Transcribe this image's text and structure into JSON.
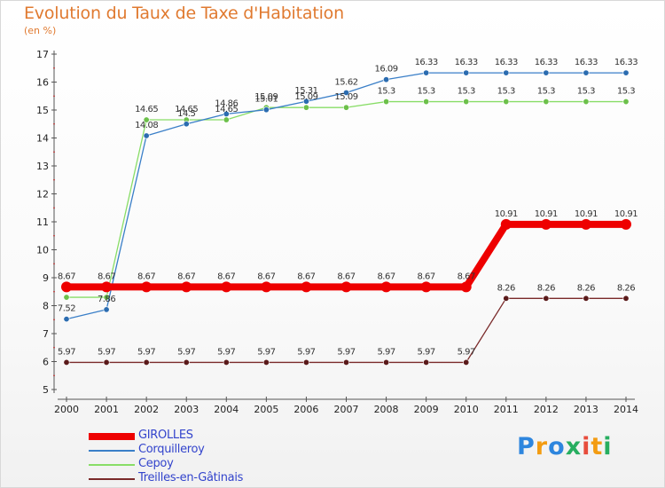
{
  "title": "Evolution du Taux de Taxe d'Habitation",
  "unit": "(en %)",
  "logo": {
    "text": "Proxiti",
    "letter_colors": [
      "#2e86de",
      "#f39c12",
      "#2e86de",
      "#27ae60",
      "#e74c3c",
      "#f39c12",
      "#27ae60"
    ]
  },
  "chart_data": {
    "type": "line",
    "title": "Evolution du Taux de Taxe d'Habitation",
    "ylabel": "(en %)",
    "xlabel": "",
    "x": [
      "2000",
      "2001",
      "2002",
      "2003",
      "2004",
      "2005",
      "2006",
      "2007",
      "2008",
      "2009",
      "2010",
      "2011",
      "2012",
      "2013",
      "2014"
    ],
    "ylim": [
      5,
      17
    ],
    "yticks": [
      5,
      6,
      7,
      8,
      9,
      10,
      11,
      12,
      13,
      14,
      15,
      16,
      17
    ],
    "grid": false,
    "legend": "bottom-left",
    "series": [
      {
        "name": "GIROLLES",
        "color": "#ee0000",
        "thick": true,
        "values": [
          8.67,
          8.67,
          8.67,
          8.67,
          8.67,
          8.67,
          8.67,
          8.67,
          8.67,
          8.67,
          8.67,
          10.91,
          10.91,
          10.91,
          10.91
        ],
        "labels": [
          "8.67",
          "8.67",
          "8.67",
          "8.67",
          "8.67",
          "8.67",
          "8.67",
          "8.67",
          "8.67",
          "8.67",
          "8.67",
          "10.91",
          "10.91",
          "10.91",
          "10.91"
        ]
      },
      {
        "name": "Corquilleroy",
        "color": "#3a7fc8",
        "point_color": "#2b6cb0",
        "thick": false,
        "values": [
          7.52,
          7.86,
          14.08,
          14.5,
          14.86,
          15.01,
          15.31,
          15.62,
          16.09,
          16.33,
          16.33,
          16.33,
          16.33,
          16.33,
          16.33
        ],
        "labels": [
          "7.52",
          "7.86",
          "14.08",
          "14.5",
          "14.86",
          "15.01",
          "15.31",
          "15.62",
          "16.09",
          "16.33",
          "16.33",
          "16.33",
          "16.33",
          "16.33",
          "16.33"
        ]
      },
      {
        "name": "Cepoy",
        "color": "#88dd66",
        "point_color": "#6cc04a",
        "thick": false,
        "values": [
          8.3,
          8.3,
          14.65,
          14.65,
          14.65,
          15.09,
          15.09,
          15.09,
          15.3,
          15.3,
          15.3,
          15.3,
          15.3,
          15.3,
          15.3
        ],
        "labels": [
          "",
          "",
          "14.65",
          "14.65",
          "14.65",
          "15.09",
          "15.09",
          "15.09",
          "15.3",
          "15.3",
          "15.3",
          "15.3",
          "15.3",
          "15.3",
          "15.3"
        ]
      },
      {
        "name": "Treilles-en-Gâtinais",
        "color": "#7a2a2a",
        "point_color": "#5a1a1a",
        "thick": false,
        "values": [
          5.97,
          5.97,
          5.97,
          5.97,
          5.97,
          5.97,
          5.97,
          5.97,
          5.97,
          5.97,
          5.97,
          8.26,
          8.26,
          8.26,
          8.26
        ],
        "labels": [
          "5.97",
          "5.97",
          "5.97",
          "5.97",
          "5.97",
          "5.97",
          "5.97",
          "5.97",
          "5.97",
          "5.97",
          "5.97",
          "8.26",
          "8.26",
          "8.26",
          "8.26"
        ]
      }
    ]
  }
}
